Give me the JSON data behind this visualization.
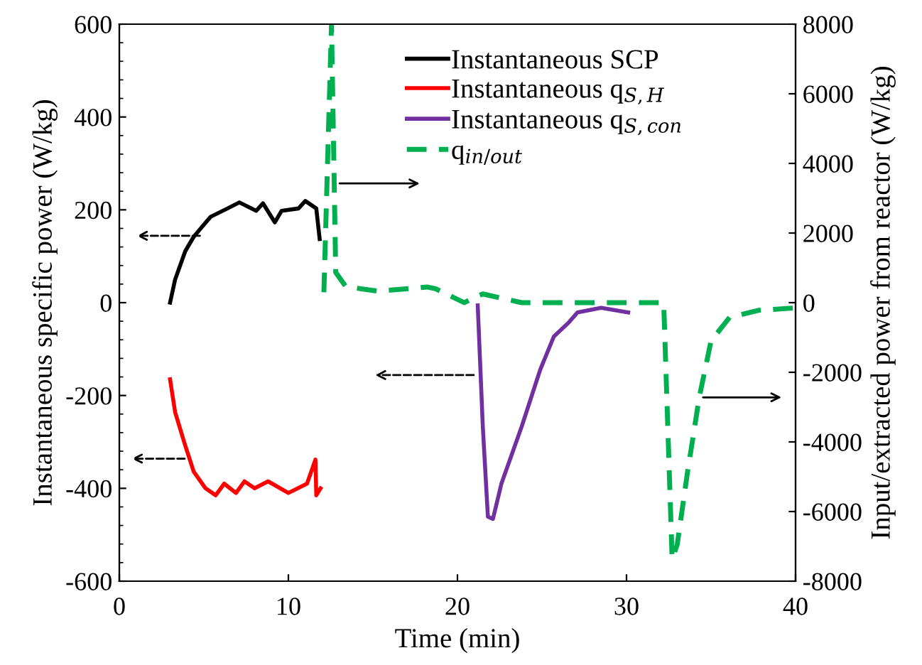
{
  "chart_data": {
    "type": "line",
    "xlabel": "Time (min)",
    "ylabel": "Instantaneous specific power (W/kg)",
    "y2label": "Input/extracted power from reactor (W/kg)",
    "xlim": [
      0,
      40
    ],
    "xticks": [
      0,
      10,
      20,
      30,
      40
    ],
    "ylim": [
      -600,
      600
    ],
    "yticks": [
      -600,
      -400,
      -200,
      0,
      200,
      400,
      600
    ],
    "y2lim": [
      -8000,
      8000
    ],
    "y2ticks": [
      -8000,
      -6000,
      -4000,
      -2000,
      0,
      2000,
      4000,
      6000,
      8000
    ],
    "legend": "top right",
    "grid": false,
    "marker": "none",
    "series": [
      {
        "name": "Instantaneous SCP",
        "color": "#000000",
        "line_style": "solid",
        "x": [
          3.0,
          3.3,
          3.9,
          4.4,
          5.0,
          5.4,
          6.4,
          7.1,
          8.1,
          8.5,
          9.2,
          9.6,
          10.6,
          11.0,
          11.65,
          11.85
        ],
        "values": [
          0,
          50,
          111,
          142,
          168,
          185,
          203,
          216,
          198,
          214,
          173,
          198,
          203,
          219,
          203,
          137
        ]
      },
      {
        "name": "Instantaneous q$_{S,H}$",
        "color": "#ff0000",
        "line_style": "solid",
        "x": [
          3.0,
          3.3,
          3.9,
          4.4,
          5.1,
          5.7,
          6.2,
          6.9,
          7.4,
          8.0,
          8.8,
          10.0,
          11.1,
          11.6,
          11.65,
          11.9
        ],
        "values": [
          -165,
          -236,
          -308,
          -364,
          -400,
          -415,
          -390,
          -410,
          -385,
          -400,
          -385,
          -410,
          -390,
          -338,
          -415,
          -400
        ]
      },
      {
        "name": "Instantaneous q$_{S,con}$",
        "color": "#7030a0",
        "line_style": "solid",
        "x": [
          21.2,
          21.5,
          21.8,
          22.1,
          22.6,
          23.8,
          24.9,
          25.7,
          26.6,
          27.1,
          28.5,
          30.1
        ],
        "values": [
          -6,
          -267,
          -461,
          -466,
          -390,
          -267,
          -144,
          -73,
          -42,
          -21,
          -11,
          -21
        ]
      },
      {
        "name": "q$_{in/out}$",
        "color": "#00b050",
        "line_style": "dashed",
        "axis": "y2",
        "x": [
          12.1,
          12.55,
          12.8,
          13.4,
          15.3,
          18.2,
          18.7,
          20.4,
          21.2,
          21.5,
          23.8,
          31.9,
          32.2,
          32.7,
          33.0,
          33.6,
          34.3,
          35.0,
          36.1,
          37.8,
          40.0
        ],
        "values": [
          300,
          8000,
          870,
          460,
          330,
          450,
          400,
          0,
          190,
          250,
          0,
          0,
          0,
          -7360,
          -6950,
          -4900,
          -2730,
          -1100,
          -420,
          -220,
          -150
        ]
      }
    ]
  }
}
